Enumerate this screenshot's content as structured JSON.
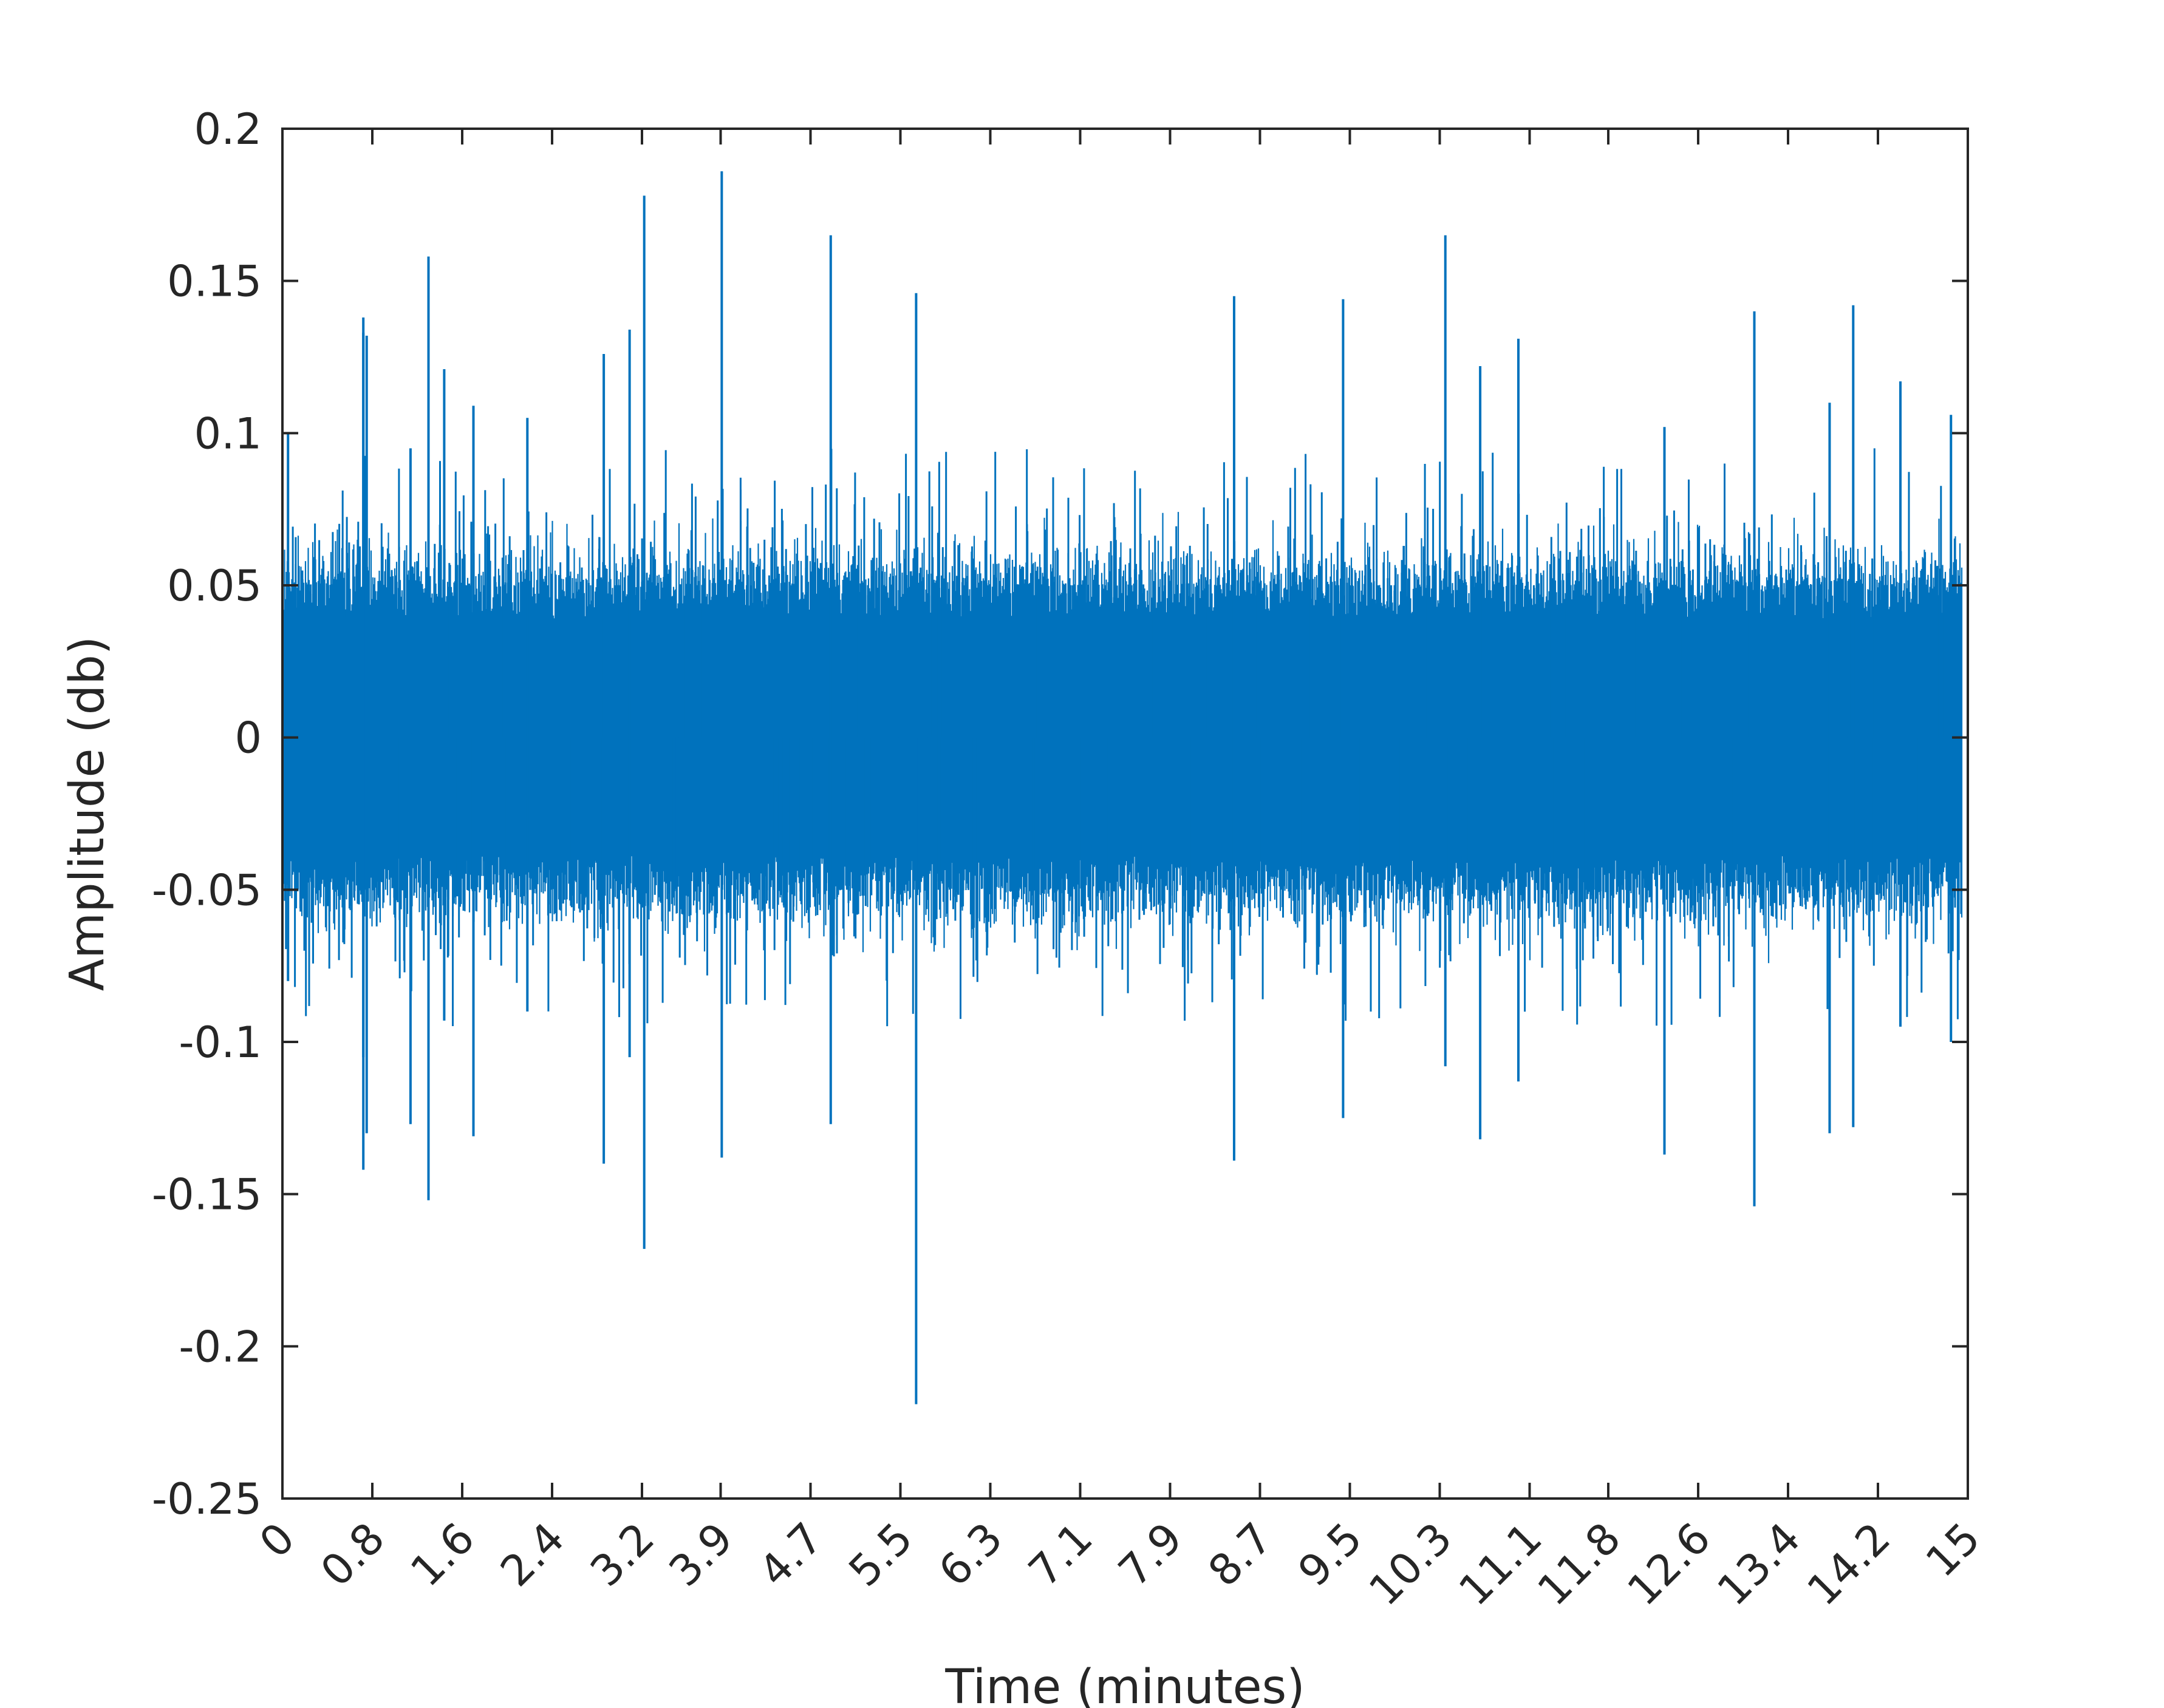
{
  "chart_data": {
    "type": "line",
    "title": "",
    "xlabel": "Time (minutes)",
    "ylabel": "Amplitude (db)",
    "xlim": [
      0,
      15
    ],
    "ylim": [
      -0.25,
      0.2
    ],
    "xticks": [
      0,
      0.8,
      1.6,
      2.4,
      3.2,
      3.9,
      4.7,
      5.5,
      6.3,
      7.1,
      7.9,
      8.7,
      9.5,
      10.3,
      11.1,
      11.8,
      12.6,
      13.4,
      14.2,
      15
    ],
    "xtick_labels": [
      "0",
      "0.8",
      "1.6",
      "2.4",
      "3.2",
      "3.9",
      "4.7",
      "5.5",
      "6.3",
      "7.1",
      "7.9",
      "8.7",
      "9.5",
      "10.3",
      "11.1",
      "11.8",
      "12.6",
      "13.4",
      "14.2",
      "15"
    ],
    "yticks": [
      -0.25,
      -0.2,
      -0.15,
      -0.1,
      -0.05,
      0,
      0.05,
      0.1,
      0.15,
      0.2
    ],
    "ytick_labels": [
      "-0.25",
      "-0.2",
      "-0.15",
      "-0.1",
      "-0.05",
      "0",
      "0.05",
      "0.1",
      "0.15",
      "0.2"
    ],
    "grid": false,
    "legend": "none",
    "line_color": "#0072BD",
    "series": [
      {
        "description": "dense audio waveform, bulk envelope approx ±0.05",
        "envelope": [
          -0.045,
          0.045
        ],
        "peaks": [
          {
            "x": 0.05,
            "max": 0.1,
            "min": -0.08
          },
          {
            "x": 0.72,
            "max": 0.133,
            "min": -0.105
          },
          {
            "x": 0.72,
            "max": 0.138,
            "min": -0.142
          },
          {
            "x": 0.75,
            "max": 0.132,
            "min": -0.13
          },
          {
            "x": 1.14,
            "max": 0.095,
            "min": -0.127
          },
          {
            "x": 1.3,
            "max": 0.158,
            "min": -0.152
          },
          {
            "x": 1.44,
            "max": 0.121,
            "min": -0.093
          },
          {
            "x": 1.7,
            "max": 0.109,
            "min": -0.131
          },
          {
            "x": 2.18,
            "max": 0.105,
            "min": -0.09
          },
          {
            "x": 2.86,
            "max": 0.126,
            "min": -0.14
          },
          {
            "x": 3.09,
            "max": 0.134,
            "min": -0.105
          },
          {
            "x": 3.22,
            "max": 0.178,
            "min": -0.168
          },
          {
            "x": 3.91,
            "max": 0.186,
            "min": -0.138
          },
          {
            "x": 4.88,
            "max": 0.165,
            "min": -0.127
          },
          {
            "x": 5.64,
            "max": 0.146,
            "min": -0.219
          },
          {
            "x": 8.47,
            "max": 0.145,
            "min": -0.139
          },
          {
            "x": 9.44,
            "max": 0.144,
            "min": -0.125
          },
          {
            "x": 10.35,
            "max": 0.165,
            "min": -0.108
          },
          {
            "x": 10.66,
            "max": 0.122,
            "min": -0.132
          },
          {
            "x": 11.0,
            "max": 0.131,
            "min": -0.113
          },
          {
            "x": 12.3,
            "max": 0.102,
            "min": -0.137
          },
          {
            "x": 13.1,
            "max": 0.14,
            "min": -0.154
          },
          {
            "x": 13.77,
            "max": 0.11,
            "min": -0.13
          },
          {
            "x": 13.98,
            "max": 0.142,
            "min": -0.128
          },
          {
            "x": 14.4,
            "max": 0.117,
            "min": -0.095
          },
          {
            "x": 14.85,
            "max": 0.106,
            "min": -0.1
          }
        ]
      }
    ]
  }
}
